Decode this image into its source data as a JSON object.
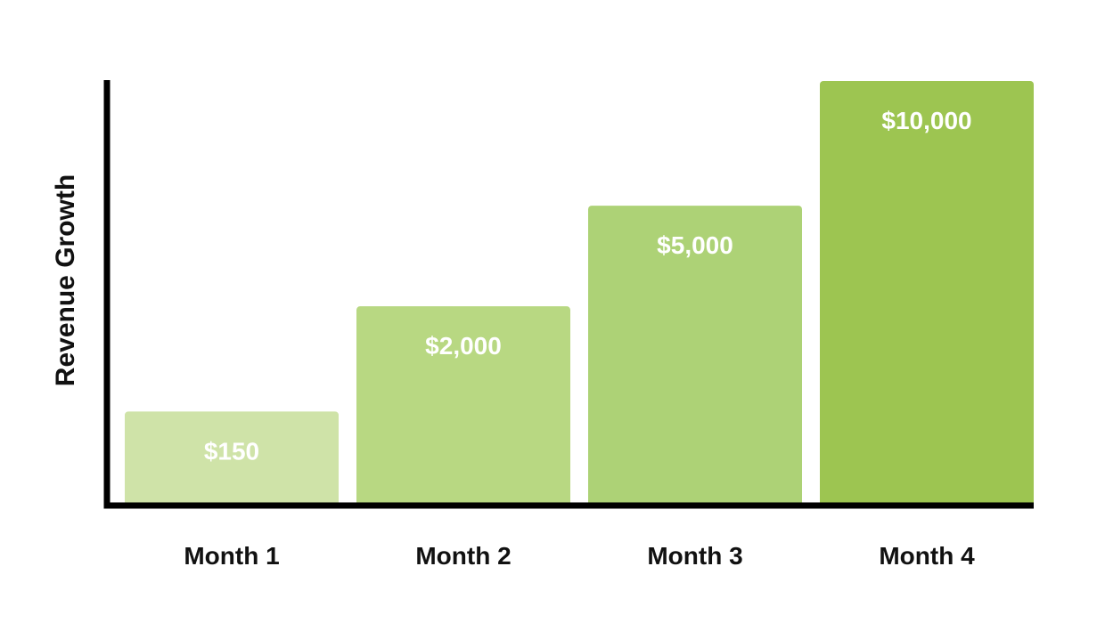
{
  "chart_data": {
    "type": "bar",
    "categories": [
      "Month 1",
      "Month 2",
      "Month 3",
      "Month 4"
    ],
    "values": [
      150,
      2000,
      5000,
      10000
    ],
    "value_labels": [
      "$150",
      "$2,000",
      "$5,000",
      "$10,000"
    ],
    "ylabel": "Revenue Growth",
    "xlabel": "",
    "title": "",
    "grid": false,
    "legend": "none",
    "bar_colors": [
      "#cfe3a8",
      "#b8d882",
      "#add276",
      "#9dc551"
    ],
    "axis_color": "#000000"
  }
}
